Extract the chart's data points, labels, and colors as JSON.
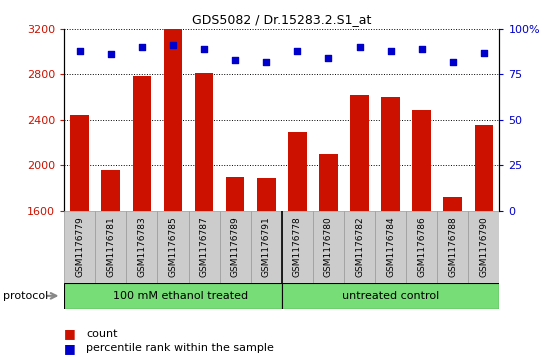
{
  "title": "GDS5082 / Dr.15283.2.S1_at",
  "samples": [
    "GSM1176779",
    "GSM1176781",
    "GSM1176783",
    "GSM1176785",
    "GSM1176787",
    "GSM1176789",
    "GSM1176791",
    "GSM1176778",
    "GSM1176780",
    "GSM1176782",
    "GSM1176784",
    "GSM1176786",
    "GSM1176788",
    "GSM1176790"
  ],
  "counts": [
    2440,
    1960,
    2790,
    3210,
    2810,
    1900,
    1890,
    2290,
    2100,
    2620,
    2600,
    2490,
    1720,
    2350
  ],
  "percentiles": [
    88,
    86,
    90,
    91,
    89,
    83,
    82,
    88,
    84,
    90,
    88,
    89,
    82,
    87
  ],
  "group1_label": "100 mM ethanol treated",
  "group2_label": "untreated control",
  "group1_count": 7,
  "group2_count": 7,
  "ylim_left": [
    1600,
    3200
  ],
  "ylim_right": [
    0,
    100
  ],
  "yticks_left": [
    1600,
    2000,
    2400,
    2800,
    3200
  ],
  "yticks_right": [
    0,
    25,
    50,
    75,
    100
  ],
  "bar_color": "#cc1100",
  "dot_color": "#0000cc",
  "group_color": "#77dd77",
  "label_bg_color": "#cccccc",
  "protocol_arrow_color": "#888888",
  "legend_count_color": "#cc1100",
  "legend_pct_color": "#0000cc"
}
